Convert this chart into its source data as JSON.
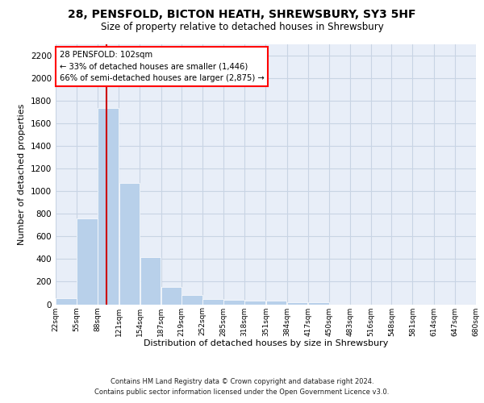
{
  "title_line1": "28, PENSFOLD, BICTON HEATH, SHREWSBURY, SY3 5HF",
  "title_line2": "Size of property relative to detached houses in Shrewsbury",
  "xlabel": "Distribution of detached houses by size in Shrewsbury",
  "ylabel": "Number of detached properties",
  "footer_line1": "Contains HM Land Registry data © Crown copyright and database right 2024.",
  "footer_line2": "Contains public sector information licensed under the Open Government Licence v3.0.",
  "annotation_line1": "28 PENSFOLD: 102sqm",
  "annotation_line2": "← 33% of detached houses are smaller (1,446)",
  "annotation_line3": "66% of semi-detached houses are larger (2,875) →",
  "bar_color": "#b8d0ea",
  "bg_color": "#e8eef8",
  "grid_color": "#c8d4e4",
  "redline_color": "#cc0000",
  "redline_x": 102,
  "bin_edges": [
    22,
    55,
    88,
    121,
    154,
    187,
    219,
    252,
    285,
    318,
    351,
    384,
    417,
    450,
    483,
    516,
    548,
    581,
    614,
    647,
    680
  ],
  "bar_heights": [
    55,
    760,
    1740,
    1070,
    415,
    155,
    85,
    48,
    42,
    30,
    30,
    18,
    18,
    0,
    0,
    0,
    0,
    0,
    0,
    0
  ],
  "ylim": [
    0,
    2300
  ],
  "yticks": [
    0,
    200,
    400,
    600,
    800,
    1000,
    1200,
    1400,
    1600,
    1800,
    2000,
    2200
  ]
}
